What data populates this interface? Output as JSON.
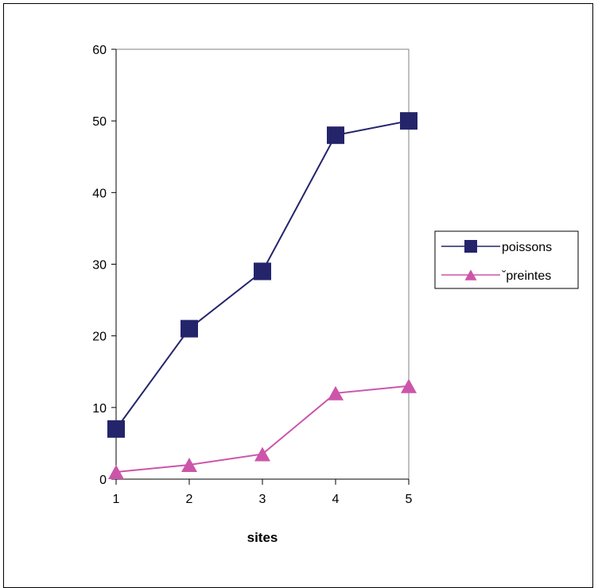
{
  "chart_data": {
    "type": "line",
    "title": "",
    "xlabel": "sites",
    "ylabel": "",
    "x": [
      1,
      2,
      3,
      4,
      5
    ],
    "ylim": [
      0,
      60
    ],
    "yticks": [
      0,
      10,
      20,
      30,
      40,
      50,
      60
    ],
    "grid": false,
    "legend": "right",
    "series": [
      {
        "name": "poissons",
        "values": [
          7,
          21,
          29,
          48,
          50
        ],
        "color": "#24246b",
        "marker": "square"
      },
      {
        "name": "ˇpreintes",
        "values": [
          1,
          2,
          3.5,
          12,
          13
        ],
        "color": "#cc55aa",
        "marker": "triangle"
      }
    ]
  }
}
